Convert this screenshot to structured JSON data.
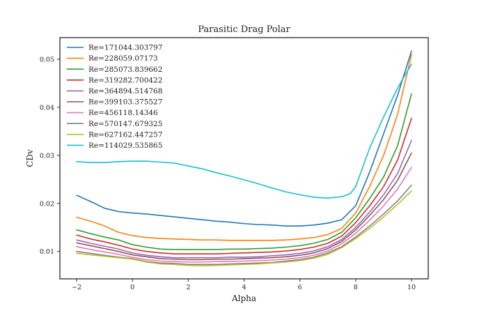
{
  "chart_data": {
    "type": "line",
    "title": "Parasitic Drag Polar",
    "xlabel": "Alpha",
    "ylabel": "CDv",
    "xlim": [
      -2.6,
      10.6
    ],
    "ylim": [
      0.0043,
      0.0545
    ],
    "xticks": [
      -2,
      0,
      2,
      4,
      6,
      8,
      10
    ],
    "yticks": [
      0.01,
      0.02,
      0.03,
      0.04,
      0.05
    ],
    "xtick_labels": [
      "−2",
      "0",
      "2",
      "4",
      "6",
      "8",
      "10"
    ],
    "ytick_labels": [
      "0.01",
      "0.02",
      "0.03",
      "0.04",
      "0.05"
    ],
    "grid": false,
    "legend": "top-left",
    "series": [
      {
        "name": "Re=171044.303797",
        "color": "#1f77b4",
        "x": [
          -2,
          -1.5,
          -1,
          -0.5,
          0,
          0.5,
          1,
          1.5,
          2,
          2.5,
          3,
          3.5,
          4,
          4.5,
          5,
          5.5,
          6,
          6.5,
          7,
          7.5,
          8,
          8.5,
          9,
          9.5,
          10
        ],
        "y": [
          0.0217,
          0.0204,
          0.019,
          0.0183,
          0.018,
          0.0178,
          0.0175,
          0.0172,
          0.0169,
          0.0166,
          0.0163,
          0.0161,
          0.0158,
          0.0156,
          0.0155,
          0.0153,
          0.0153,
          0.0155,
          0.0159,
          0.0166,
          0.0195,
          0.0265,
          0.0345,
          0.0425,
          0.0517
        ]
      },
      {
        "name": "Re=228059.07173",
        "color": "#ff7f0e",
        "x": [
          -2,
          -1.5,
          -1,
          -0.5,
          0,
          0.5,
          1,
          1.5,
          2,
          2.5,
          3,
          3.5,
          4,
          4.5,
          5,
          5.5,
          6,
          6.5,
          7,
          7.5,
          8,
          8.5,
          9,
          9.5,
          10
        ],
        "y": [
          0.0171,
          0.0163,
          0.0153,
          0.014,
          0.0133,
          0.0129,
          0.0127,
          0.0126,
          0.0125,
          0.0124,
          0.0124,
          0.0123,
          0.0123,
          0.0123,
          0.0123,
          0.0124,
          0.0126,
          0.0129,
          0.0135,
          0.0148,
          0.018,
          0.0235,
          0.03,
          0.0385,
          0.051
        ]
      },
      {
        "name": "Re=285073.839662",
        "color": "#2ca02c",
        "x": [
          -2,
          -1.5,
          -1,
          -0.5,
          0,
          0.5,
          1,
          1.5,
          2,
          2.5,
          3,
          3.5,
          4,
          4.5,
          5,
          5.5,
          6,
          6.5,
          7,
          7.5,
          8,
          8.5,
          9,
          9.5,
          10
        ],
        "y": [
          0.0145,
          0.0137,
          0.013,
          0.0124,
          0.0114,
          0.0109,
          0.0105,
          0.0104,
          0.0104,
          0.0104,
          0.0104,
          0.0105,
          0.0105,
          0.0106,
          0.0107,
          0.0109,
          0.0112,
          0.0117,
          0.0125,
          0.014,
          0.017,
          0.021,
          0.0255,
          0.032,
          0.0428
        ]
      },
      {
        "name": "Re=319282.700422",
        "color": "#d62728",
        "x": [
          -2,
          -1.5,
          -1,
          -0.5,
          0,
          0.5,
          1,
          1.5,
          2,
          2.5,
          3,
          3.5,
          4,
          4.5,
          5,
          5.5,
          6,
          6.5,
          7,
          7.5,
          8,
          8.5,
          9,
          9.5,
          10
        ],
        "y": [
          0.0134,
          0.0126,
          0.012,
          0.0113,
          0.0105,
          0.01,
          0.0097,
          0.0095,
          0.0095,
          0.0095,
          0.0095,
          0.0096,
          0.0097,
          0.0098,
          0.0099,
          0.0101,
          0.0104,
          0.0109,
          0.0117,
          0.0132,
          0.016,
          0.0195,
          0.0235,
          0.029,
          0.0377
        ]
      },
      {
        "name": "Re=364894.514768",
        "color": "#9467bd",
        "x": [
          -2,
          -1.5,
          -1,
          -0.5,
          0,
          0.5,
          1,
          1.5,
          2,
          2.5,
          3,
          3.5,
          4,
          4.5,
          5,
          5.5,
          6,
          6.5,
          7,
          7.5,
          8,
          8.5,
          9,
          9.5,
          10
        ],
        "y": [
          0.0124,
          0.0117,
          0.0111,
          0.0105,
          0.0097,
          0.0092,
          0.0089,
          0.0087,
          0.0087,
          0.0087,
          0.0087,
          0.0088,
          0.0088,
          0.0089,
          0.0091,
          0.0093,
          0.0096,
          0.0101,
          0.011,
          0.0125,
          0.015,
          0.0182,
          0.0218,
          0.0262,
          0.0331
        ]
      },
      {
        "name": "Re=399103.375527",
        "color": "#8c564b",
        "x": [
          -2,
          -1.5,
          -1,
          -0.5,
          0,
          0.5,
          1,
          1.5,
          2,
          2.5,
          3,
          3.5,
          4,
          4.5,
          5,
          5.5,
          6,
          6.5,
          7,
          7.5,
          8,
          8.5,
          9,
          9.5,
          10
        ],
        "y": [
          0.0118,
          0.0112,
          0.0106,
          0.01,
          0.0093,
          0.0089,
          0.0085,
          0.0084,
          0.0083,
          0.0083,
          0.0084,
          0.0084,
          0.0085,
          0.0086,
          0.0087,
          0.0089,
          0.0092,
          0.0097,
          0.0106,
          0.0121,
          0.0145,
          0.0175,
          0.0208,
          0.0248,
          0.0305
        ]
      },
      {
        "name": "Re=456118.14346",
        "color": "#e377c2",
        "x": [
          -2,
          -1.5,
          -1,
          -0.5,
          0,
          0.5,
          1,
          1.5,
          2,
          2.5,
          3,
          3.5,
          4,
          4.5,
          5,
          5.5,
          6,
          6.5,
          7,
          7.5,
          8,
          8.5,
          9,
          9.5,
          10
        ],
        "y": [
          0.011,
          0.0104,
          0.0099,
          0.0094,
          0.0088,
          0.0083,
          0.008,
          0.0079,
          0.0078,
          0.0078,
          0.0079,
          0.0079,
          0.008,
          0.0081,
          0.0082,
          0.0084,
          0.0087,
          0.0092,
          0.0101,
          0.0116,
          0.0138,
          0.0165,
          0.0195,
          0.023,
          0.0275
        ]
      },
      {
        "name": "Re=570147.679325",
        "color": "#7f7f7f",
        "x": [
          -2,
          -1.5,
          -1,
          -0.5,
          0,
          0.5,
          1,
          1.5,
          2,
          2.5,
          3,
          3.5,
          4,
          4.5,
          5,
          5.5,
          6,
          6.5,
          7,
          7.5,
          8,
          8.5,
          9,
          9.5,
          10
        ],
        "y": [
          0.01,
          0.0096,
          0.0092,
          0.0088,
          0.0085,
          0.0079,
          0.0076,
          0.0075,
          0.0073,
          0.0073,
          0.0073,
          0.0074,
          0.0075,
          0.0076,
          0.0077,
          0.008,
          0.0083,
          0.0088,
          0.0097,
          0.011,
          0.013,
          0.0153,
          0.0178,
          0.0205,
          0.0238
        ]
      },
      {
        "name": "Re=627162.447257",
        "color": "#bcbd22",
        "x": [
          -2,
          -1.5,
          -1,
          -0.5,
          0,
          0.5,
          1,
          1.5,
          2,
          2.5,
          3,
          3.5,
          4,
          4.5,
          5,
          5.5,
          6,
          6.5,
          7,
          7.5,
          8,
          8.5,
          9,
          9.5,
          10
        ],
        "y": [
          0.0096,
          0.0093,
          0.009,
          0.0087,
          0.0084,
          0.0078,
          0.0074,
          0.0073,
          0.0071,
          0.007,
          0.0071,
          0.0072,
          0.0073,
          0.0074,
          0.0076,
          0.0078,
          0.0081,
          0.0086,
          0.0094,
          0.0108,
          0.0127,
          0.0148,
          0.0172,
          0.0198,
          0.0226
        ]
      },
      {
        "name": "Re=114029.535865",
        "color": "#17becf",
        "x": [
          -2,
          -1.5,
          -1,
          -0.5,
          0,
          0.5,
          1,
          1.5,
          2,
          2.5,
          3,
          3.5,
          4,
          4.5,
          5,
          5.5,
          6,
          6.5,
          7,
          7.5,
          7.8,
          8,
          8.25,
          8.5,
          9,
          9.5,
          10
        ],
        "y": [
          0.0287,
          0.0285,
          0.0285,
          0.0287,
          0.0288,
          0.0288,
          0.0286,
          0.0284,
          0.0278,
          0.0272,
          0.0264,
          0.0257,
          0.0249,
          0.0241,
          0.0232,
          0.0224,
          0.0218,
          0.0213,
          0.0211,
          0.0214,
          0.022,
          0.0235,
          0.0275,
          0.0315,
          0.038,
          0.044,
          0.049
        ]
      }
    ]
  }
}
